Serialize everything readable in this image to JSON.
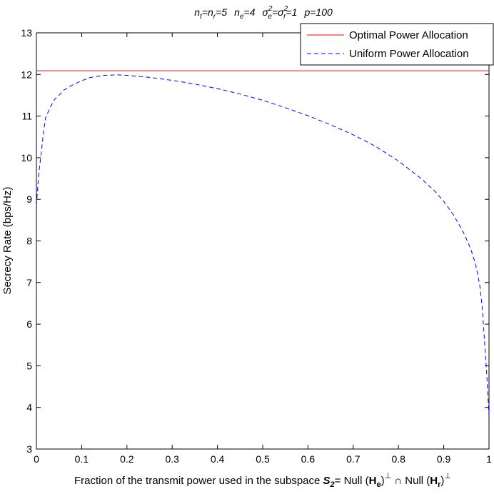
{
  "chart_data": {
    "type": "line",
    "title": "n_t=n_r=5   n_e=4   σ_e²=σ_r²=1   p=100",
    "title_parts": {
      "n": "n",
      "t": "t",
      "eq1": "=n",
      "r": "r",
      "v5": "=5",
      "ne_n": "n",
      "ne_e": "e",
      "ne_v": "=4",
      "sigma": "σ",
      "sup2": "2",
      "e": "e",
      "eq2": "=σ",
      "r2": "r",
      "v1": "=1",
      "p": "p=100"
    },
    "xlabel": "Fraction of the transmit power used in the subspace S₂= Null (Hₑ)⊥ ∩ Null (Hᵣ)⊥",
    "xlabel_parts": {
      "prefix": "Fraction of the transmit power used in the subspace ",
      "S": "S",
      "S_sub": "2",
      "eq_null": "= Null (",
      "H1": "H",
      "H1_sub": "e",
      "close1": ")",
      "perp1": "⊥",
      "cap": " ∩ Null (",
      "H2": "H",
      "H2_sub": "r",
      "close2": ")",
      "perp2": "⊥"
    },
    "ylabel": "Secrecy Rate (bps/Hz)",
    "xlim": [
      0,
      1
    ],
    "ylim": [
      3,
      13
    ],
    "xticks": [
      0,
      0.1,
      0.2,
      0.3,
      0.4,
      0.5,
      0.6,
      0.7,
      0.8,
      0.9,
      1
    ],
    "xtick_labels": [
      "0",
      "0.1",
      "0.2",
      "0.3",
      "0.4",
      "0.5",
      "0.6",
      "0.7",
      "0.8",
      "0.9",
      "1"
    ],
    "yticks": [
      3,
      4,
      5,
      6,
      7,
      8,
      9,
      10,
      11,
      12,
      13
    ],
    "ytick_labels": [
      "3",
      "4",
      "5",
      "6",
      "7",
      "8",
      "9",
      "10",
      "11",
      "12",
      "13"
    ],
    "legend_position": "top-right",
    "series": [
      {
        "name": "Optimal Power Allocation",
        "color": "#ff0000",
        "style": "solid",
        "x": [
          0,
          1
        ],
        "y": [
          12.09,
          12.09
        ]
      },
      {
        "name": "Uniform Power Allocation",
        "color": "#0000ff",
        "style": "dashed",
        "x": [
          0,
          0.005,
          0.01,
          0.015,
          0.02,
          0.03,
          0.04,
          0.05,
          0.06,
          0.08,
          0.1,
          0.12,
          0.15,
          0.18,
          0.2,
          0.25,
          0.3,
          0.35,
          0.4,
          0.45,
          0.5,
          0.55,
          0.6,
          0.65,
          0.7,
          0.75,
          0.8,
          0.85,
          0.88,
          0.9,
          0.92,
          0.94,
          0.95,
          0.96,
          0.97,
          0.975,
          0.98,
          0.985,
          0.99,
          0.995,
          1.0
        ],
        "y": [
          8.85,
          9.6,
          10.05,
          10.55,
          10.95,
          11.2,
          11.4,
          11.5,
          11.62,
          11.75,
          11.85,
          11.93,
          11.98,
          11.99,
          11.98,
          11.93,
          11.86,
          11.77,
          11.66,
          11.53,
          11.38,
          11.2,
          11.01,
          10.79,
          10.55,
          10.27,
          9.92,
          9.5,
          9.2,
          8.95,
          8.65,
          8.28,
          8.05,
          7.8,
          7.45,
          7.2,
          6.9,
          6.4,
          5.6,
          4.8,
          3.8
        ]
      }
    ]
  }
}
